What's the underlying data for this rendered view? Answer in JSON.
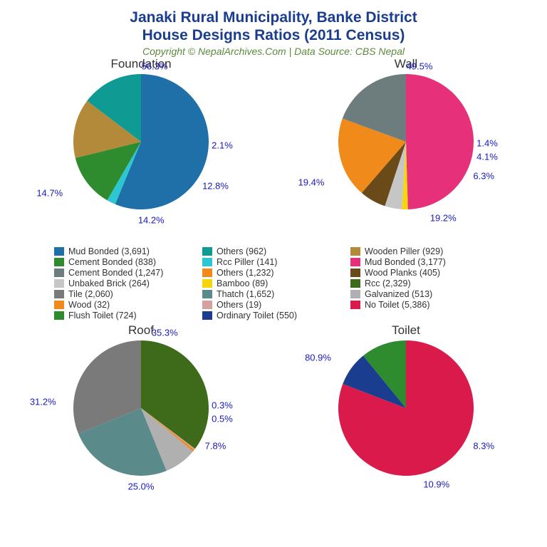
{
  "title_line1": "Janaki Rural Municipality, Banke District",
  "title_line2": "House Designs Ratios (2011 Census)",
  "subtitle": "Copyright © NepalArchives.Com | Data Source: CBS Nepal",
  "legend": [
    {
      "label": "Mud Bonded (3,691)",
      "color": "#1f6fa8"
    },
    {
      "label": "Others (962)",
      "color": "#0f9a94"
    },
    {
      "label": "Wooden Piller (929)",
      "color": "#b28a3a"
    },
    {
      "label": "Cement Bonded (838)",
      "color": "#2e8b2e"
    },
    {
      "label": "Rcc Piller (141)",
      "color": "#2dc7d4"
    },
    {
      "label": "Mud Bonded (3,177)",
      "color": "#e6307a"
    },
    {
      "label": "Cement Bonded (1,247)",
      "color": "#6d7d7d"
    },
    {
      "label": "Others (1,232)",
      "color": "#f08a1a"
    },
    {
      "label": "Wood Planks (405)",
      "color": "#6b4a1a"
    },
    {
      "label": "Unbaked Brick (264)",
      "color": "#c6c6c6"
    },
    {
      "label": "Bamboo (89)",
      "color": "#f6d60a"
    },
    {
      "label": "Rcc (2,329)",
      "color": "#3d6b1a"
    },
    {
      "label": "Tile (2,060)",
      "color": "#7a7a7a"
    },
    {
      "label": "Thatch (1,652)",
      "color": "#5a8a8a"
    },
    {
      "label": "Galvanized (513)",
      "color": "#b0b0b0"
    },
    {
      "label": "Wood (32)",
      "color": "#f08a1a"
    },
    {
      "label": "Others (19)",
      "color": "#d4a0a0"
    },
    {
      "label": "No Toilet (5,386)",
      "color": "#d91a4a"
    },
    {
      "label": "Flush Toilet (724)",
      "color": "#2e8b2e"
    },
    {
      "label": "Ordinary Toilet (550)",
      "color": "#1a3d8f"
    }
  ],
  "charts": {
    "foundation": {
      "title": "Foundation",
      "radius": 95,
      "slices": [
        {
          "value": 56.3,
          "color": "#1f6fa8",
          "label": "56.3%",
          "lx": 0.2,
          "ly": -1.12
        },
        {
          "value": 2.1,
          "color": "#2dc7d4",
          "label": "2.1%",
          "lx": 1.2,
          "ly": 0.05
        },
        {
          "value": 12.8,
          "color": "#2e8b2e",
          "label": "12.8%",
          "lx": 1.1,
          "ly": 0.65
        },
        {
          "value": 14.2,
          "color": "#b28a3a",
          "label": "14.2%",
          "lx": 0.15,
          "ly": 1.15
        },
        {
          "value": 14.7,
          "color": "#0f9a94",
          "label": "14.7%",
          "lx": -1.35,
          "ly": 0.75
        }
      ]
    },
    "wall": {
      "title": "Wall",
      "radius": 95,
      "slices": [
        {
          "value": 49.5,
          "color": "#e6307a",
          "label": "49.5%",
          "lx": 0.2,
          "ly": -1.12
        },
        {
          "value": 1.4,
          "color": "#f6d60a",
          "label": "1.4%",
          "lx": 1.2,
          "ly": 0.02
        },
        {
          "value": 4.1,
          "color": "#c6c6c6",
          "label": "4.1%",
          "lx": 1.2,
          "ly": 0.22
        },
        {
          "value": 6.3,
          "color": "#6b4a1a",
          "label": "6.3%",
          "lx": 1.15,
          "ly": 0.5
        },
        {
          "value": 19.2,
          "color": "#f08a1a",
          "label": "19.2%",
          "lx": 0.55,
          "ly": 1.12
        },
        {
          "value": 19.4,
          "color": "#6d7d7d",
          "label": "19.4%",
          "lx": -1.4,
          "ly": 0.6
        }
      ]
    },
    "roof": {
      "title": "Roof",
      "radius": 95,
      "slices": [
        {
          "value": 35.3,
          "color": "#3d6b1a",
          "label": "35.3%",
          "lx": 0.35,
          "ly": -1.12
        },
        {
          "value": 0.3,
          "color": "#d4a0a0",
          "label": "0.3%",
          "lx": 1.2,
          "ly": -0.05
        },
        {
          "value": 0.5,
          "color": "#f08a1a",
          "label": "0.5%",
          "lx": 1.2,
          "ly": 0.15
        },
        {
          "value": 7.8,
          "color": "#b0b0b0",
          "label": "7.8%",
          "lx": 1.1,
          "ly": 0.55
        },
        {
          "value": 25.0,
          "color": "#5a8a8a",
          "label": "25.0%",
          "lx": 0.0,
          "ly": 1.15
        },
        {
          "value": 31.2,
          "color": "#7a7a7a",
          "label": "31.2%",
          "lx": -1.45,
          "ly": -0.1
        }
      ]
    },
    "toilet": {
      "title": "Toilet",
      "radius": 95,
      "slices": [
        {
          "value": 80.9,
          "color": "#d91a4a",
          "label": "80.9%",
          "lx": -1.3,
          "ly": -0.75
        },
        {
          "value": 8.3,
          "color": "#1a3d8f",
          "label": "8.3%",
          "lx": 1.15,
          "ly": 0.55
        },
        {
          "value": 10.9,
          "color": "#2e8b2e",
          "label": "10.9%",
          "lx": 0.45,
          "ly": 1.12
        }
      ]
    }
  }
}
